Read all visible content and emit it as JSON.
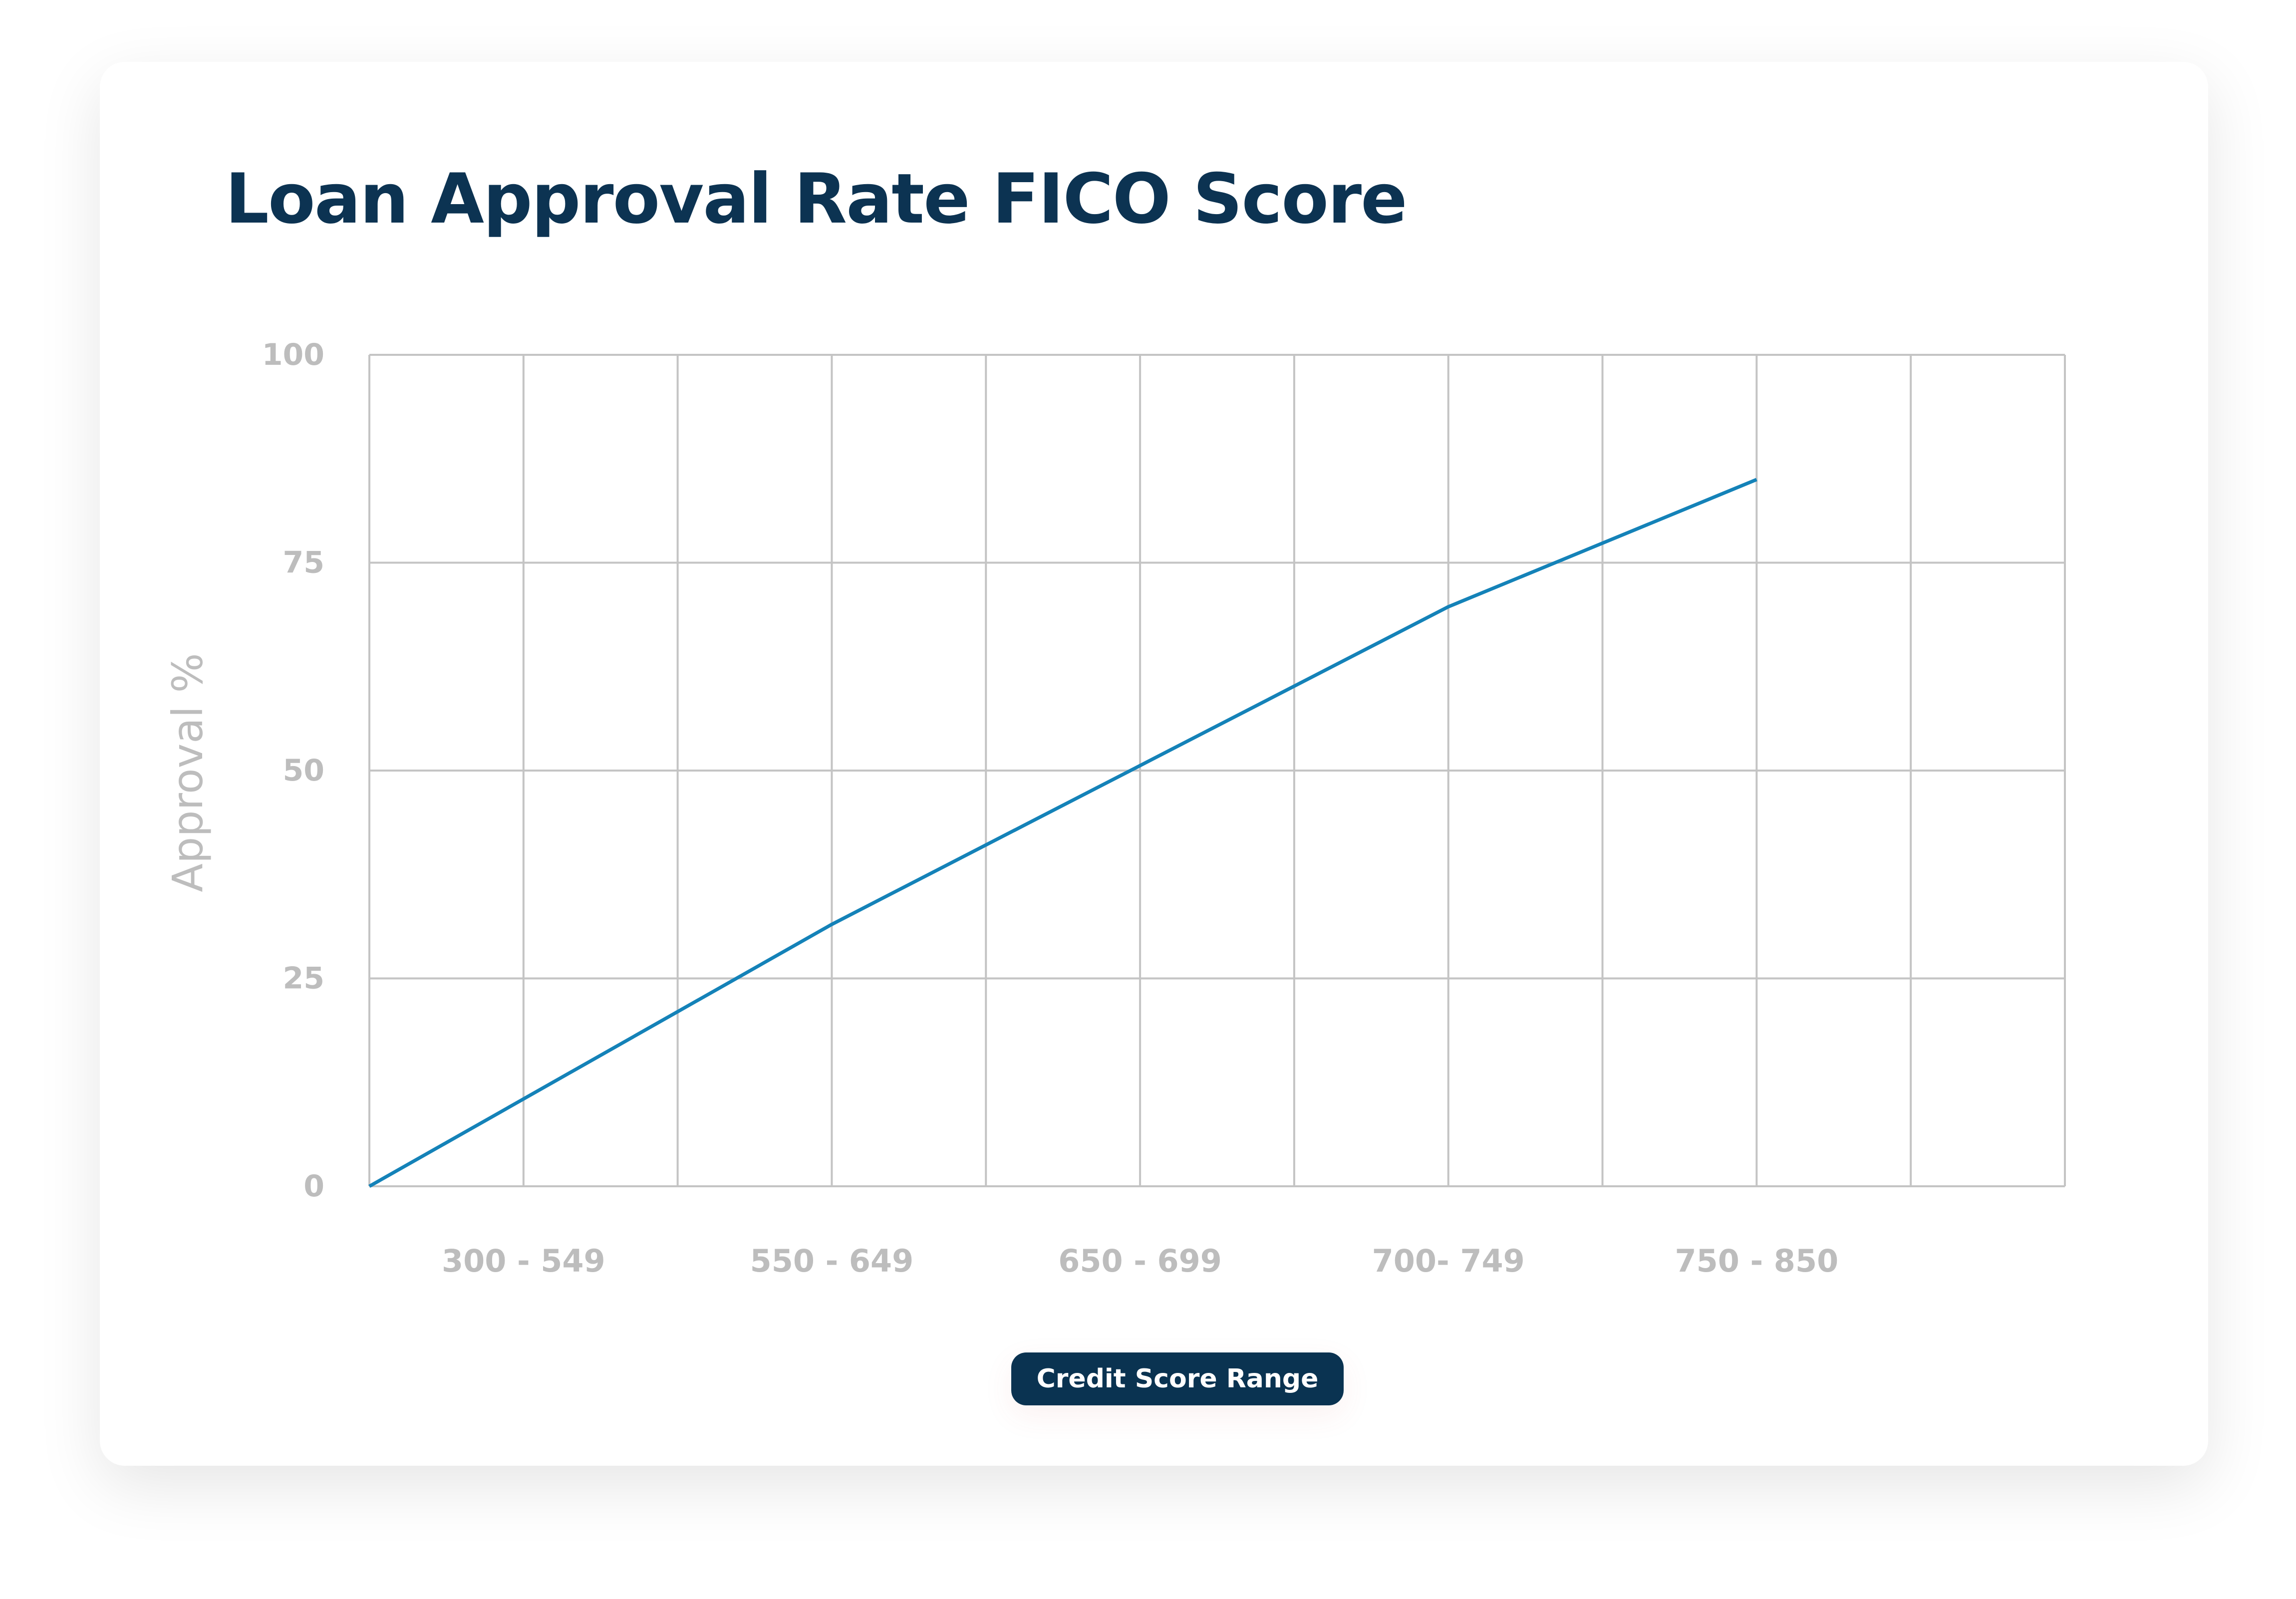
{
  "chart_data": {
    "type": "line",
    "title": "Loan Approval Rate FICO Score",
    "xlabel": "Credit Score Range",
    "ylabel": "Approval %",
    "categories": [
      "300 - 549",
      "550 - 649",
      "650 - 699",
      "700- 749",
      "750 - 850"
    ],
    "y_ticks": [
      "0",
      "25",
      "50",
      "75",
      "100"
    ],
    "ylim": [
      0,
      100
    ],
    "grid": true,
    "series": [
      {
        "points": [
          {
            "x_grid": 0,
            "y": 0
          },
          {
            "x_grid": 3,
            "y": 31.5
          },
          {
            "x_grid": 7,
            "y": 69.7
          },
          {
            "x_grid": 9,
            "y": 85
          }
        ]
      }
    ],
    "colors": {
      "line": "#1482b8",
      "grid": "#c4c4c4",
      "title": "#0c3352",
      "tick_text": "#bdbdbd",
      "button": "#0a3351"
    }
  }
}
